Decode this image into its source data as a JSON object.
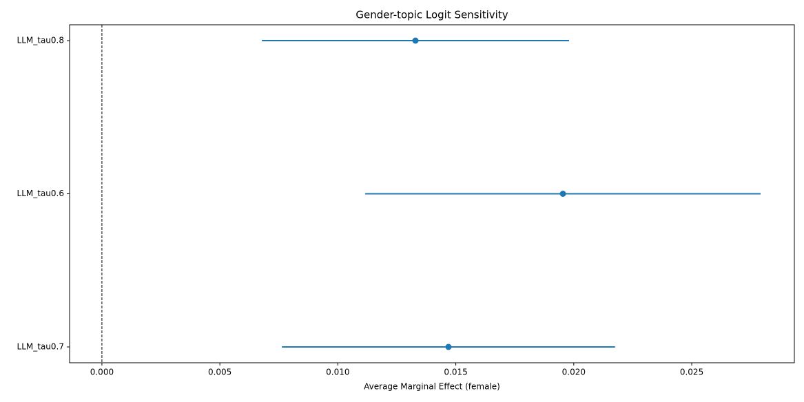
{
  "chart_data": {
    "type": "errorbar",
    "title": "Gender-topic Logit Sensitivity",
    "x_label": "Average Marginal Effect (female)",
    "categories": [
      "LLM_tau0.8",
      "LLM_tau0.6",
      "LLM_tau0.7"
    ],
    "values": [
      0.01329,
      0.01954,
      0.01469
    ],
    "errors": [
      0.00651,
      0.00838,
      0.00706
    ],
    "color": "#1f77b4",
    "reference_line": 0,
    "xlim": [
      -0.00137,
      0.02935
    ],
    "xticks": [
      {
        "value": 0,
        "label": "0.000"
      },
      0.005,
      {
        "value": 0.01,
        "label": "0.010"
      },
      0.015,
      {
        "value": 0.02,
        "label": "0.020"
      },
      0.025
    ]
  }
}
